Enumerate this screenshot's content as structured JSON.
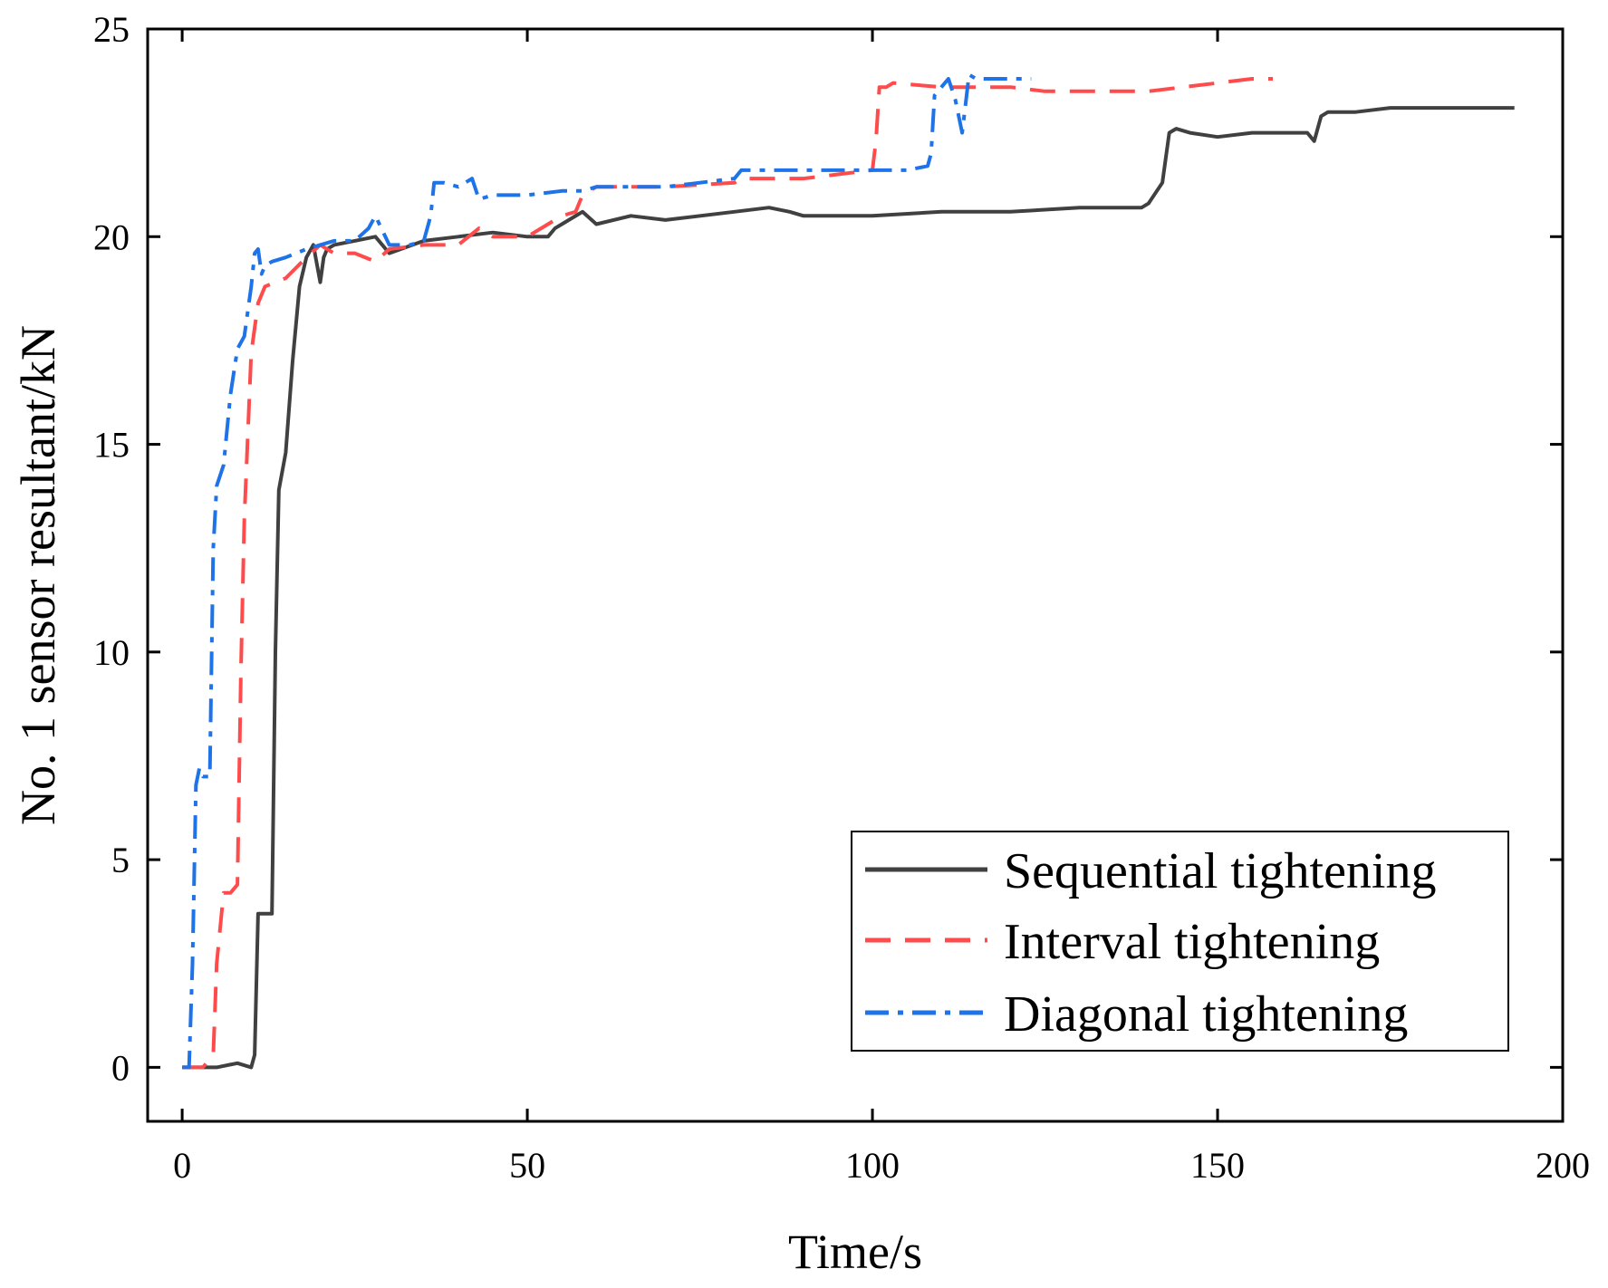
{
  "chart_data": {
    "type": "line",
    "title": "",
    "xlabel": "Time/s",
    "ylabel": "No. 1 sensor resultant/kN",
    "xlim": [
      -5,
      200
    ],
    "ylim": [
      -1.3,
      25
    ],
    "xticks": [
      0,
      50,
      100,
      150,
      200
    ],
    "yticks": [
      0,
      5,
      10,
      15,
      20,
      25
    ],
    "grid": false,
    "legend_position": "bottom-right",
    "series": [
      {
        "name": "Sequential tightening",
        "color": "#404040",
        "dash": "solid",
        "x": [
          0,
          5,
          8,
          10,
          10.5,
          11,
          12,
          13,
          13.5,
          14,
          15,
          16,
          17,
          18,
          19,
          20,
          20.5,
          21,
          22,
          25,
          28,
          30,
          35,
          40,
          45,
          50,
          53,
          54,
          55,
          58,
          60,
          65,
          70,
          80,
          85,
          88,
          90,
          100,
          110,
          120,
          130,
          139,
          140,
          142,
          143,
          144,
          146,
          150,
          155,
          158,
          163,
          164,
          165,
          166,
          170,
          175,
          180,
          185,
          190,
          193
        ],
        "y": [
          0,
          0,
          0.1,
          0,
          0.3,
          3.7,
          3.7,
          3.7,
          10,
          13.9,
          14.8,
          17,
          18.8,
          19.5,
          19.8,
          18.9,
          19.5,
          19.7,
          19.8,
          19.9,
          20.0,
          19.6,
          19.9,
          20.0,
          20.1,
          20.0,
          20.0,
          20.2,
          20.3,
          20.6,
          20.3,
          20.5,
          20.4,
          20.6,
          20.7,
          20.6,
          20.5,
          20.5,
          20.6,
          20.6,
          20.7,
          20.7,
          20.8,
          21.3,
          22.5,
          22.6,
          22.5,
          22.4,
          22.5,
          22.5,
          22.5,
          22.3,
          22.9,
          23.0,
          23.0,
          23.1,
          23.1,
          23.1,
          23.1,
          23.1
        ]
      },
      {
        "name": "Interval tightening",
        "color": "#ff4b4b",
        "dash": "dashed",
        "x": [
          0,
          3,
          4.5,
          5,
          6,
          7,
          8,
          8.5,
          9,
          10,
          11,
          12,
          15,
          18,
          20,
          22,
          25,
          28,
          30,
          35,
          40,
          43,
          45,
          50,
          53,
          55,
          57,
          58,
          59,
          60,
          65,
          70,
          80,
          81,
          90,
          95,
          100,
          100.5,
          101,
          102,
          103,
          110,
          115,
          120,
          125,
          130,
          140,
          145,
          150,
          155,
          158
        ],
        "y": [
          0,
          0,
          0.3,
          2.5,
          4.2,
          4.2,
          4.4,
          9.5,
          13.2,
          17.2,
          18.4,
          18.8,
          19.0,
          19.5,
          19.8,
          19.6,
          19.6,
          19.4,
          19.7,
          19.8,
          19.8,
          20.2,
          20.0,
          20.0,
          20.3,
          20.5,
          20.6,
          21.0,
          21.1,
          21.2,
          21.2,
          21.2,
          21.3,
          21.4,
          21.4,
          21.5,
          21.6,
          22.3,
          23.6,
          23.6,
          23.7,
          23.6,
          23.6,
          23.6,
          23.5,
          23.5,
          23.5,
          23.6,
          23.7,
          23.8,
          23.8
        ]
      },
      {
        "name": "Diagonal tightening",
        "color": "#1e73e8",
        "dash": "dashdot",
        "x": [
          0,
          1,
          1.5,
          2,
          2.5,
          3,
          4,
          4.5,
          5,
          6,
          7,
          8,
          9,
          10,
          10.5,
          11,
          11.5,
          12,
          13,
          15,
          18,
          20,
          22,
          25,
          27,
          28,
          30,
          33,
          35,
          36,
          36.5,
          38,
          40,
          42,
          43,
          45,
          50,
          55,
          58,
          60,
          70,
          80,
          81,
          90,
          100,
          105,
          108,
          108.5,
          109,
          110,
          111,
          112,
          113,
          114,
          115,
          118,
          120,
          123
        ],
        "y": [
          0,
          0,
          2.5,
          6.8,
          7.2,
          7.0,
          7.0,
          12.5,
          14.0,
          14.5,
          16.2,
          17.3,
          17.6,
          18.8,
          19.6,
          19.7,
          19.1,
          19.3,
          19.4,
          19.5,
          19.7,
          19.8,
          19.9,
          19.9,
          20.2,
          20.5,
          19.8,
          19.8,
          19.9,
          20.5,
          21.3,
          21.3,
          21.2,
          21.4,
          20.9,
          21.0,
          21.0,
          21.1,
          21.1,
          21.2,
          21.2,
          21.4,
          21.6,
          21.6,
          21.6,
          21.6,
          21.7,
          22.0,
          23.4,
          23.6,
          23.8,
          23.3,
          22.5,
          23.9,
          23.8,
          23.8,
          23.8,
          23.8
        ]
      }
    ]
  }
}
